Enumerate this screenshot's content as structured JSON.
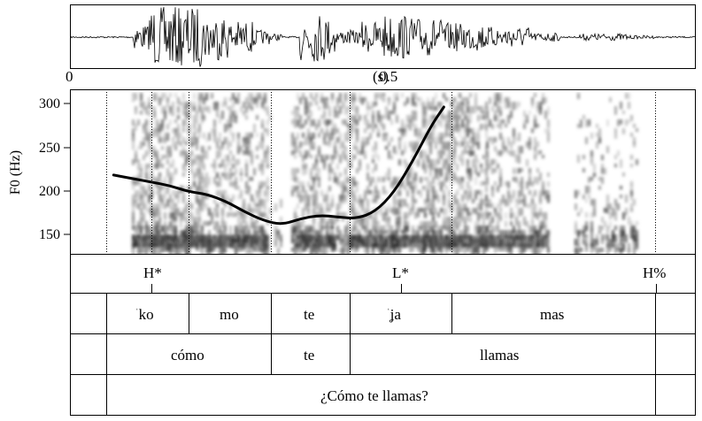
{
  "time_axis": {
    "start_label": "0",
    "end_label": "0.5",
    "unit_label": "(s)"
  },
  "pitch_axis": {
    "title": "F0 (Hz)",
    "ticks": [
      "300",
      "250",
      "200",
      "150"
    ]
  },
  "tiers": {
    "tones": [
      "H*",
      "L*",
      "H%"
    ],
    "syllables": [
      {
        "stress": "ˈ",
        "text": "ko"
      },
      {
        "stress": "",
        "text": "mo"
      },
      {
        "stress": "",
        "text": "te"
      },
      {
        "stress": "ˈ",
        "text": "ʝa"
      },
      {
        "stress": "",
        "text": "mas"
      }
    ],
    "words": [
      "cómo",
      "te",
      "llamas"
    ],
    "phrase": "¿Cómo te llamas?"
  },
  "chart_data": {
    "type": "line",
    "xlabel": "",
    "ylabel": "F0 (Hz)",
    "ylim": [
      130,
      315
    ],
    "series": [
      {
        "x": [
          0.07,
          0.1,
          0.13,
          0.16,
          0.19,
          0.22,
          0.25,
          0.28,
          0.31,
          0.34,
          0.37,
          0.4,
          0.43,
          0.46,
          0.49,
          0.52,
          0.55,
          0.58,
          0.6
        ],
        "values": [
          218,
          214,
          210,
          206,
          199,
          196,
          188,
          176,
          166,
          161,
          168,
          172,
          170,
          168,
          176,
          198,
          234,
          275,
          296
        ]
      }
    ]
  },
  "colors": {
    "line": "#000000",
    "frame": "#000000",
    "spectrogram": "#000000"
  }
}
